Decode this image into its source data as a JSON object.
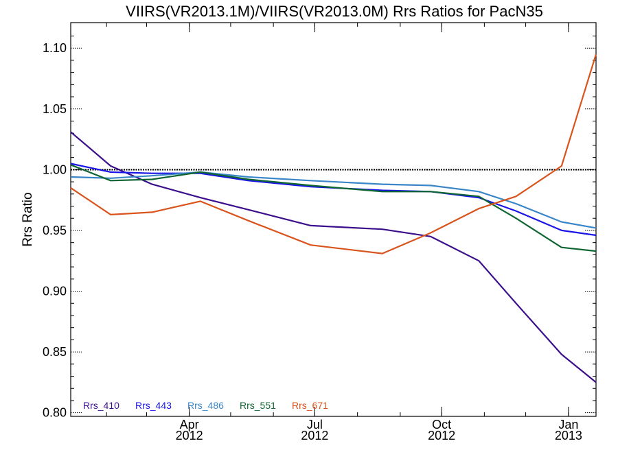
{
  "chart_data": {
    "type": "line",
    "title": "VIIRS(VR2013.1M)/VIIRS(VR2013.0M)  Rrs Ratios for PacN35",
    "xlabel": "",
    "ylabel": "Rrs Ratio",
    "xlim": [
      "2012-01-06",
      "2013-01-21"
    ],
    "ylim": [
      0.797,
      1.121
    ],
    "yticks": [
      0.8,
      0.85,
      0.9,
      0.95,
      1.0,
      1.05,
      1.1
    ],
    "ytick_labels": [
      "0.80",
      "0.85",
      "0.90",
      "0.95",
      "1.00",
      "1.05",
      "1.10"
    ],
    "xticks": [
      {
        "date": "2012-04-01",
        "label_top": "Apr",
        "label_bottom": "2012"
      },
      {
        "date": "2012-07-01",
        "label_top": "Jul",
        "label_bottom": "2012"
      },
      {
        "date": "2012-10-01",
        "label_top": "Oct",
        "label_bottom": "2012"
      },
      {
        "date": "2013-01-01",
        "label_top": "Jan",
        "label_bottom": "2013"
      }
    ],
    "reference_line": {
      "y": 1.0,
      "style": "dotted",
      "color": "#000000"
    },
    "legend_position": "bottom-left",
    "x": [
      "2012-01-06",
      "2012-02-04",
      "2012-03-05",
      "2012-04-09",
      "2012-05-14",
      "2012-06-28",
      "2012-08-19",
      "2012-09-23",
      "2012-10-28",
      "2012-11-24",
      "2012-12-27",
      "2013-01-21"
    ],
    "series": [
      {
        "name": "Rrs_410",
        "color": "#3b0f8c",
        "values": [
          1.031,
          1.003,
          0.988,
          0.977,
          0.967,
          0.954,
          0.951,
          0.945,
          0.925,
          0.89,
          0.848,
          0.825
        ]
      },
      {
        "name": "Rrs_443",
        "color": "#1a14e6",
        "values": [
          1.005,
          0.998,
          0.997,
          0.997,
          0.991,
          0.986,
          0.983,
          0.982,
          0.977,
          0.966,
          0.95,
          0.946
        ]
      },
      {
        "name": "Rrs_486",
        "color": "#3a86c8",
        "values": [
          0.994,
          0.993,
          0.995,
          0.998,
          0.994,
          0.991,
          0.988,
          0.987,
          0.982,
          0.972,
          0.957,
          0.952
        ]
      },
      {
        "name": "Rrs_551",
        "color": "#0f6632",
        "values": [
          1.004,
          0.991,
          0.992,
          0.998,
          0.992,
          0.987,
          0.982,
          0.982,
          0.978,
          0.96,
          0.936,
          0.933
        ]
      },
      {
        "name": "Rrs_671",
        "color": "#d9541c",
        "values": [
          0.985,
          0.963,
          0.965,
          0.974,
          0.958,
          0.938,
          0.931,
          0.948,
          0.968,
          0.978,
          1.003,
          1.095
        ]
      }
    ]
  }
}
